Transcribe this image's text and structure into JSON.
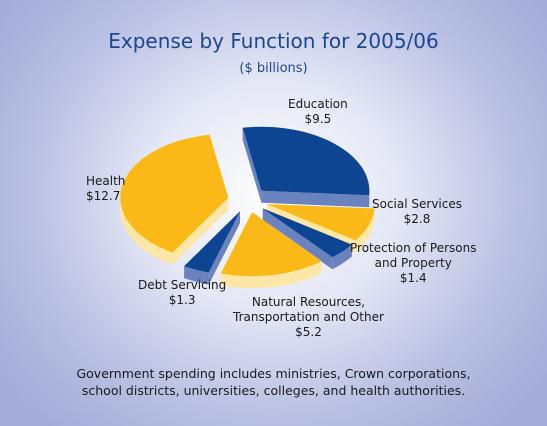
{
  "chart_data": {
    "type": "pie",
    "title": "Expense by Function for 2005/06",
    "subtitle": "($ billions)",
    "slices": [
      {
        "key": "education",
        "label": "Education",
        "value": 9.5,
        "value_label": "$9.5",
        "color": "#0d4592",
        "exploded": true
      },
      {
        "key": "social",
        "label": "Social Services",
        "value": 2.8,
        "value_label": "$2.8",
        "color": "#fbb917",
        "exploded": true
      },
      {
        "key": "protection",
        "label": "Protection of Persons and Property",
        "label_lines": [
          "Protection of Persons",
          "and Property"
        ],
        "value": 1.4,
        "value_label": "$1.4",
        "color": "#0d4592",
        "exploded": true
      },
      {
        "key": "natural",
        "label": "Natural Resources, Transportation and Other",
        "label_lines": [
          "Natural Resources,",
          "Transportation and Other"
        ],
        "value": 5.2,
        "value_label": "$5.2",
        "color": "#fbb917",
        "exploded": true
      },
      {
        "key": "debt",
        "label": "Debt Servicing",
        "value": 1.3,
        "value_label": "$1.3",
        "color": "#0d4592",
        "exploded": true
      },
      {
        "key": "health",
        "label": "Health",
        "value": 12.7,
        "value_label": "$12.7",
        "color": "#fbb917",
        "exploded": true
      }
    ]
  },
  "footnote": {
    "line1": "Government spending includes ministries, Crown corporations,",
    "line2": "school districts, universities, colleges, and health authorities."
  }
}
